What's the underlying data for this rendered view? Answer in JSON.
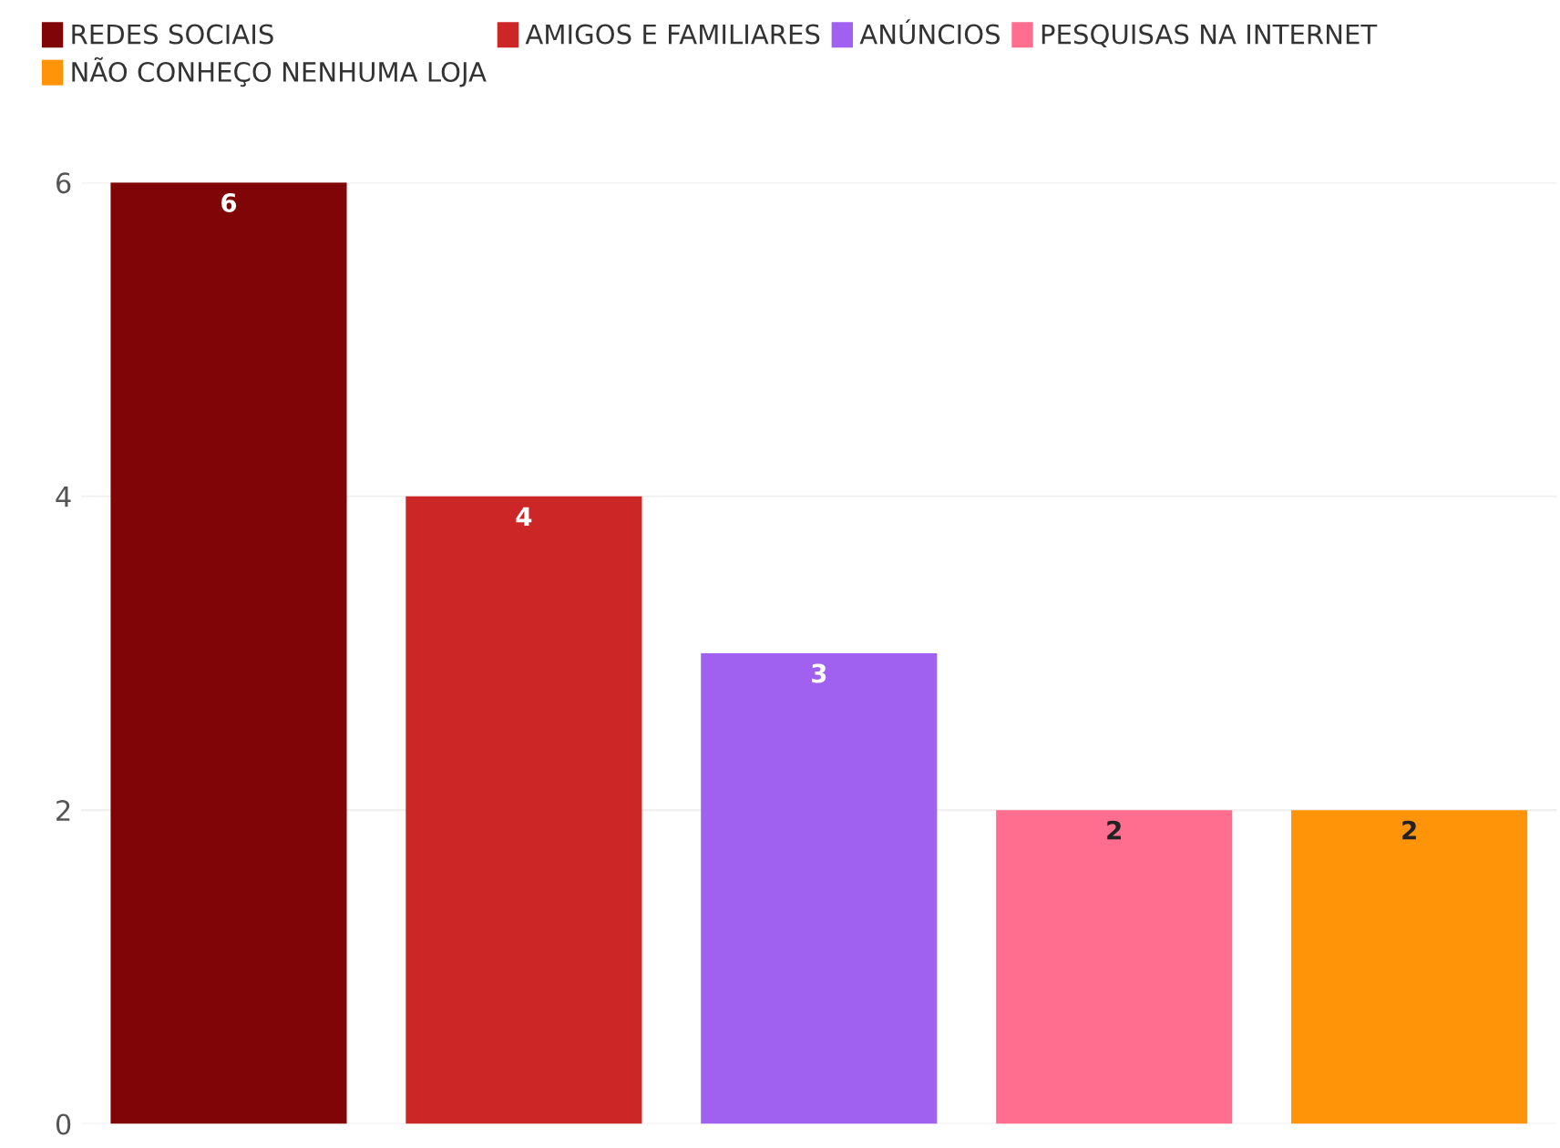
{
  "chart_data": {
    "type": "bar",
    "categories": [
      null,
      null,
      null,
      null,
      null
    ],
    "series": [
      {
        "name": "REDES SOCIAIS",
        "color": "#7f0506",
        "values": [
          6,
          null,
          null,
          null,
          null
        ]
      },
      {
        "name": "AMIGOS E FAMILIARES",
        "color": "#cd2626",
        "values": [
          null,
          4,
          null,
          null,
          null
        ]
      },
      {
        "name": "ANÚNCIOS",
        "color": "#a060f0",
        "values": [
          null,
          null,
          3,
          null,
          null
        ]
      },
      {
        "name": "PESQUISAS NA INTERNET",
        "color": "#ff6e8e",
        "values": [
          null,
          null,
          null,
          2,
          null
        ]
      },
      {
        "name": "NÃO CONHEÇO NENHUMA LOJA",
        "color": "#ff9408",
        "values": [
          null,
          null,
          null,
          null,
          2
        ]
      }
    ],
    "ylim": [
      0,
      6
    ],
    "yticks": [
      0,
      2,
      4,
      6
    ],
    "grid": "y",
    "legend": "top left",
    "data_labels": true,
    "tick_labels": "y"
  }
}
